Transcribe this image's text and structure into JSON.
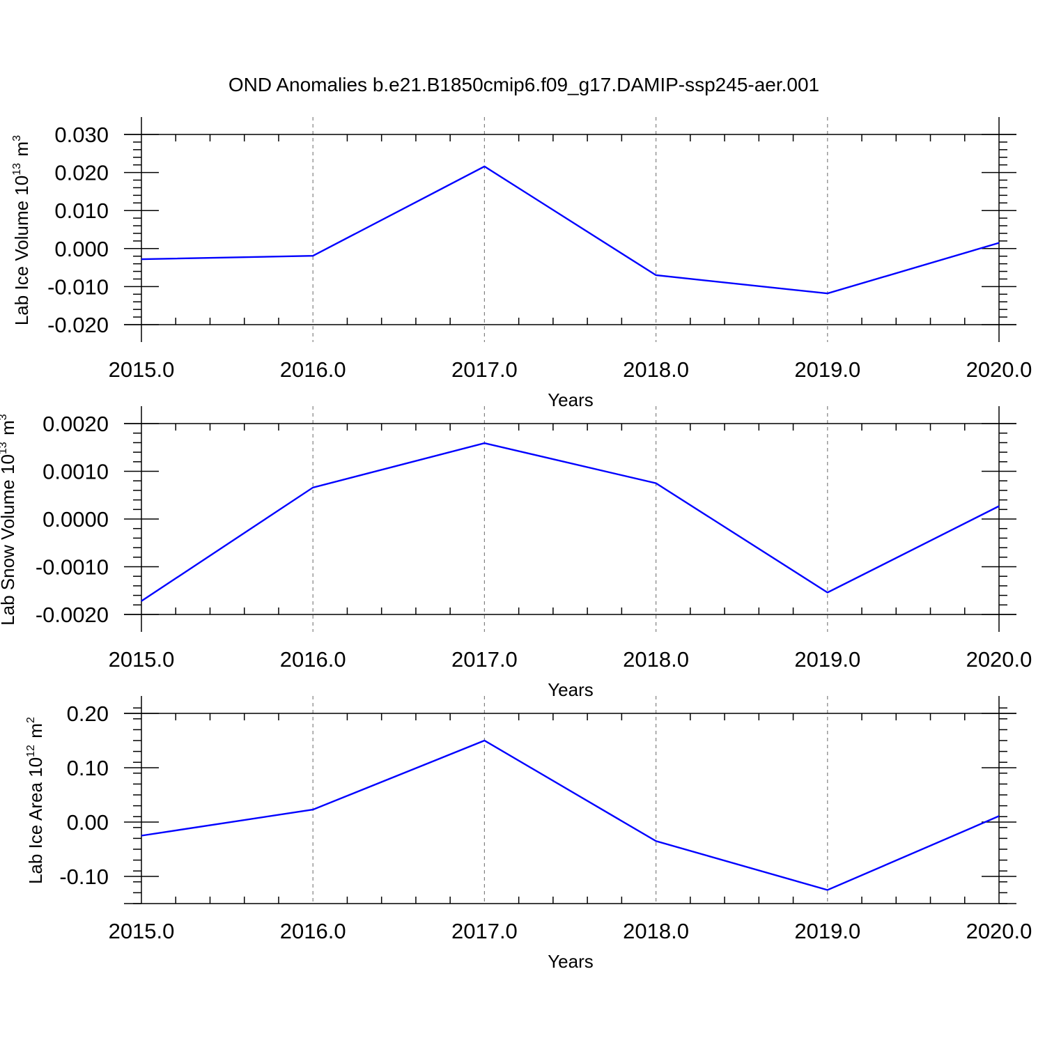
{
  "title": "OND Anomalies b.e21.B1850cmip6.f09_g17.DAMIP-ssp245-aer.001",
  "colors": {
    "line": "#0000ff",
    "axis": "#000000",
    "grid": "#808080"
  },
  "chart_data": [
    {
      "type": "line",
      "ylabel": "Lab Ice Volume 10",
      "ylabel_exp": "13",
      "ylabel_unit": " m",
      "ylabel_unit_exp": "3",
      "xlabel": "Years",
      "x": [
        2015,
        2016,
        2017,
        2018,
        2019,
        2020
      ],
      "series": [
        {
          "values": [
            -0.0028,
            -0.0019,
            0.0216,
            -0.007,
            -0.0118,
            0.0015
          ]
        }
      ],
      "xlim": [
        2015,
        2020
      ],
      "ylim": [
        -0.02,
        0.03
      ],
      "xticks": [
        2015,
        2016,
        2017,
        2018,
        2019,
        2020
      ],
      "xtick_labels": [
        "2015.0",
        "2016.0",
        "2017.0",
        "2018.0",
        "2019.0",
        "2020.0"
      ],
      "yticks": [
        -0.02,
        -0.01,
        0.0,
        0.01,
        0.02,
        0.03
      ],
      "ytick_labels": [
        "-0.020",
        "-0.010",
        "0.000",
        "0.010",
        "0.020",
        "0.030"
      ],
      "yminor_step": 0.002,
      "grid": "vertical-dashed"
    },
    {
      "type": "line",
      "ylabel": "Lab Snow Volume 10",
      "ylabel_exp": "13",
      "ylabel_unit": " m",
      "ylabel_unit_exp": "3",
      "xlabel": "Years",
      "x": [
        2015,
        2016,
        2017,
        2018,
        2019,
        2020
      ],
      "series": [
        {
          "values": [
            -0.00172,
            0.00066,
            0.00159,
            0.00075,
            -0.00154,
            0.00027
          ]
        }
      ],
      "xlim": [
        2015,
        2020
      ],
      "ylim": [
        -0.002,
        0.002
      ],
      "xticks": [
        2015,
        2016,
        2017,
        2018,
        2019,
        2020
      ],
      "xtick_labels": [
        "2015.0",
        "2016.0",
        "2017.0",
        "2018.0",
        "2019.0",
        "2020.0"
      ],
      "yticks": [
        -0.002,
        -0.001,
        0.0,
        0.001,
        0.002
      ],
      "ytick_labels": [
        "-0.0020",
        "-0.0010",
        "0.0000",
        "0.0010",
        "0.0020"
      ],
      "yminor_step": 0.0002,
      "grid": "vertical-dashed"
    },
    {
      "type": "line",
      "ylabel": "Lab Ice Area 10",
      "ylabel_exp": "12",
      "ylabel_unit": " m",
      "ylabel_unit_exp": "2",
      "xlabel": "Years",
      "x": [
        2015,
        2016,
        2017,
        2018,
        2019,
        2020
      ],
      "series": [
        {
          "values": [
            -0.025,
            0.023,
            0.15,
            -0.035,
            -0.125,
            0.011
          ]
        }
      ],
      "xlim": [
        2015,
        2020
      ],
      "ylim": [
        -0.15,
        0.2
      ],
      "xticks": [
        2015,
        2016,
        2017,
        2018,
        2019,
        2020
      ],
      "xtick_labels": [
        "2015.0",
        "2016.0",
        "2017.0",
        "2018.0",
        "2019.0",
        "2020.0"
      ],
      "yticks": [
        -0.1,
        0.0,
        0.1,
        0.2
      ],
      "ytick_labels": [
        "-0.10",
        "0.00",
        "0.10",
        "0.20"
      ],
      "yminor_step": 0.02,
      "grid": "vertical-dashed"
    }
  ]
}
